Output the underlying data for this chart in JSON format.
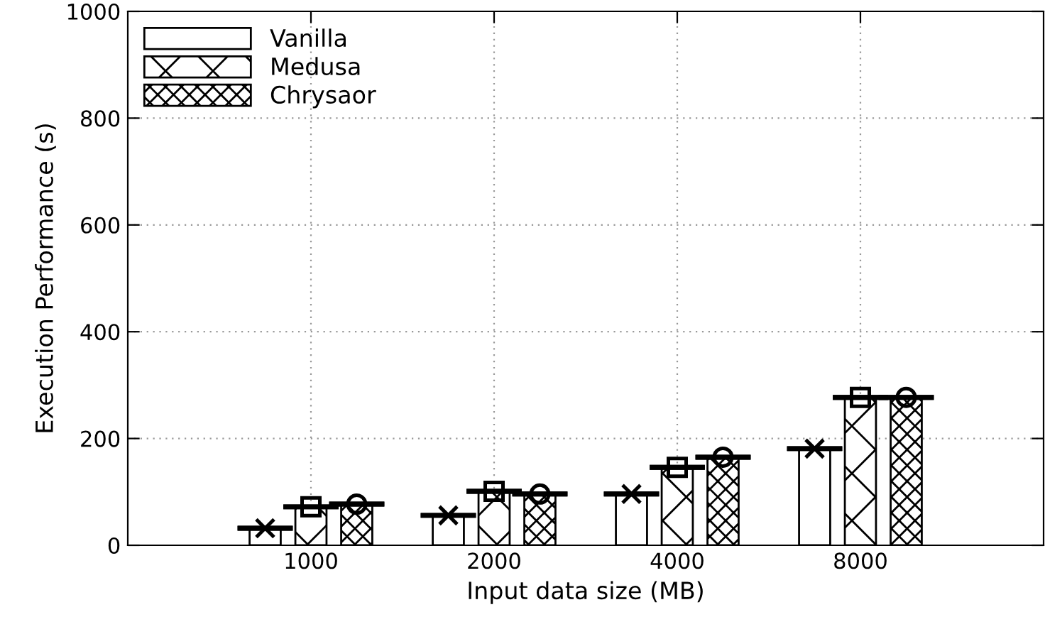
{
  "chart_data": {
    "type": "bar",
    "xlabel": "Input data size (MB)",
    "ylabel": "Execution Performance (s)",
    "categories": [
      "1000",
      "2000",
      "4000",
      "8000"
    ],
    "series": [
      {
        "name": "Vanilla",
        "color": "#ffffff",
        "values": [
          32,
          56,
          96,
          181
        ],
        "errors": [
          0,
          0,
          0,
          0
        ]
      },
      {
        "name": "Medusa",
        "color": "#000000",
        "values": [
          72,
          101,
          146,
          277
        ],
        "errors": [
          0,
          0,
          0,
          0
        ]
      },
      {
        "name": "Chrysaor",
        "color": "#000000",
        "values": [
          77,
          96,
          165,
          277
        ],
        "errors": [
          0,
          0,
          0,
          0
        ]
      },
      {
        "type": "scatter",
        "color": "#000000",
        "values": [
          32,
          56,
          96,
          181
        ],
        "marker": "cross"
      },
      {
        "type": "scatter",
        "color": "#000000",
        "values": [
          72,
          101,
          146,
          277
        ],
        "marker": "square"
      },
      {
        "type": "scatter",
        "color": "#000000",
        "values": [
          77,
          96,
          165,
          277
        ],
        "marker": "circle"
      }
    ],
    "ylim": [
      0,
      1000
    ],
    "yticks": [
      0,
      200,
      400,
      600,
      800,
      1000
    ],
    "grid": true,
    "legend": "top left"
  }
}
